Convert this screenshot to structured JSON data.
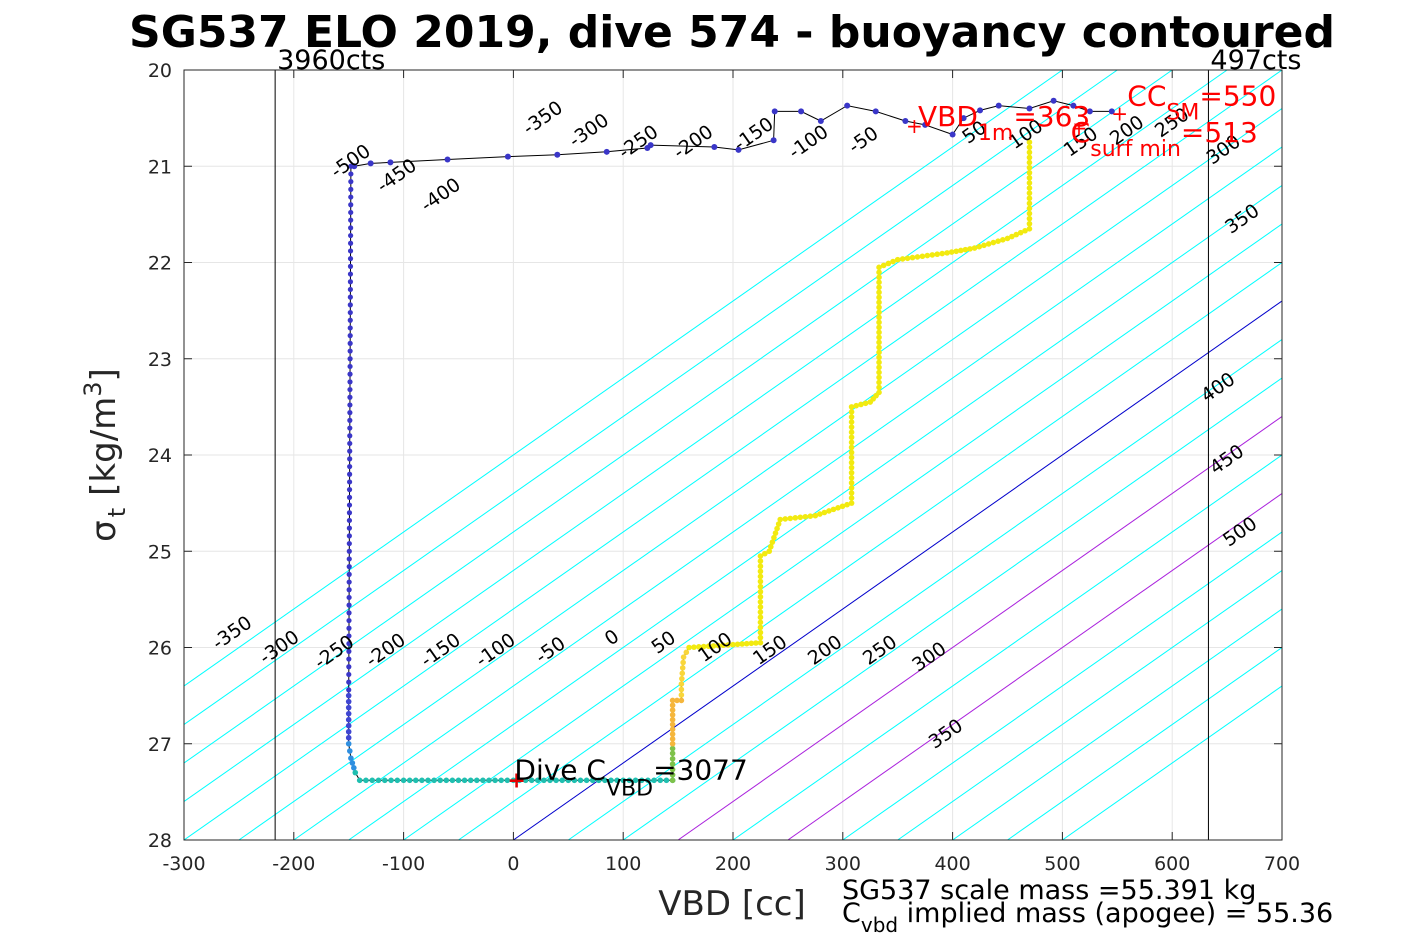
{
  "chart_data": {
    "type": "scatter",
    "title": "SG537 ELO 2019, dive 574 - buoyancy contoured",
    "xlabel": "VBD [cc]",
    "ylabel": "σ_t [kg/m^3]",
    "ylabel_parts": {
      "sigma": "σ",
      "sub": "t",
      "main": "[kg/m",
      "sup": "3",
      "close": "]"
    },
    "xlim": [
      -300,
      700
    ],
    "ylim": [
      20,
      28
    ],
    "y_reversed": true,
    "grid": true,
    "x_ticks": [
      -300,
      -200,
      -100,
      0,
      100,
      200,
      300,
      400,
      500,
      600,
      700
    ],
    "y_ticks": [
      20,
      21,
      22,
      23,
      24,
      25,
      26,
      27,
      28
    ],
    "colors": {
      "contour": "#00ffff",
      "zero_line": "#0000cc",
      "magenta_line": "#aa22dd",
      "dive": "#3a36c8",
      "climb": "#f2ea10",
      "bottom": "#1fbfb0",
      "annotation_red": "#ff0000",
      "track": "#000000"
    },
    "vertical_lines": [
      {
        "x": -217,
        "label": "3960cts"
      },
      {
        "x": 633,
        "label": "497cts"
      }
    ],
    "contours": {
      "slope_cc_per_sigma": -125,
      "levels": [
        -500,
        -450,
        -400,
        -350,
        -300,
        -250,
        -200,
        -150,
        -100,
        -50,
        0,
        50,
        100,
        150,
        200,
        250,
        300,
        350,
        400,
        450,
        500
      ],
      "highlight_zero": 0,
      "highlight_magenta": [
        150,
        250
      ],
      "labels": [
        {
          "level": "-500",
          "x": -145,
          "y": 21.0
        },
        {
          "level": "-450",
          "x": -103,
          "y": 21.15
        },
        {
          "level": "-400",
          "x": -63,
          "y": 21.35
        },
        {
          "level": "-350",
          "x": 30,
          "y": 20.55
        },
        {
          "level": "-300",
          "x": 72,
          "y": 20.68
        },
        {
          "level": "-250",
          "x": 117,
          "y": 20.8
        },
        {
          "level": "-200",
          "x": 167,
          "y": 20.8
        },
        {
          "level": "-150",
          "x": 222,
          "y": 20.72
        },
        {
          "level": "-100",
          "x": 272,
          "y": 20.8
        },
        {
          "level": "-50",
          "x": 322,
          "y": 20.78
        },
        {
          "level": "50",
          "x": 423,
          "y": 20.7
        },
        {
          "level": "100",
          "x": 470,
          "y": 20.72
        },
        {
          "level": "150",
          "x": 520,
          "y": 20.8
        },
        {
          "level": "200",
          "x": 562,
          "y": 20.68
        },
        {
          "level": "250",
          "x": 603,
          "y": 20.6
        },
        {
          "level": "300",
          "x": 650,
          "y": 20.88
        },
        {
          "level": "350",
          "x": 667,
          "y": 21.6
        },
        {
          "level": "400",
          "x": 645,
          "y": 23.35
        },
        {
          "level": "450",
          "x": 653,
          "y": 24.1
        },
        {
          "level": "500",
          "x": 665,
          "y": 24.85
        },
        {
          "level": "-350",
          "x": -253,
          "y": 25.9
        },
        {
          "level": "-300",
          "x": -210,
          "y": 26.05
        },
        {
          "level": "-250",
          "x": -160,
          "y": 26.1
        },
        {
          "level": "-200",
          "x": -113,
          "y": 26.08
        },
        {
          "level": "-150",
          "x": -63,
          "y": 26.08
        },
        {
          "level": "-100",
          "x": -13,
          "y": 26.08
        },
        {
          "level": "-50",
          "x": 37,
          "y": 26.08
        },
        {
          "level": "0",
          "x": 93,
          "y": 25.95
        },
        {
          "level": "50",
          "x": 140,
          "y": 26.0
        },
        {
          "level": "100",
          "x": 187,
          "y": 26.05
        },
        {
          "level": "150",
          "x": 237,
          "y": 26.08
        },
        {
          "level": "200",
          "x": 287,
          "y": 26.08
        },
        {
          "level": "250",
          "x": 337,
          "y": 26.08
        },
        {
          "level": "300",
          "x": 382,
          "y": 26.15
        },
        {
          "level": "350",
          "x": 397,
          "y": 26.95
        }
      ]
    },
    "series": [
      {
        "name": "dive",
        "points": [
          [
            -145,
            21.0
          ],
          [
            -130,
            20.97
          ],
          [
            -112,
            20.96
          ],
          [
            -60,
            20.93
          ],
          [
            -5,
            20.9
          ],
          [
            40,
            20.88
          ],
          [
            85,
            20.85
          ],
          [
            122,
            20.81
          ],
          [
            125,
            20.78
          ],
          [
            183,
            20.8
          ],
          [
            205,
            20.83
          ],
          [
            237,
            20.73
          ],
          [
            238,
            20.43
          ],
          [
            262,
            20.43
          ],
          [
            280,
            20.53
          ],
          [
            304,
            20.37
          ],
          [
            330,
            20.43
          ],
          [
            357,
            20.53
          ],
          [
            375,
            20.57
          ],
          [
            400,
            20.67
          ],
          [
            410,
            20.5
          ],
          [
            425,
            20.42
          ],
          [
            442,
            20.37
          ],
          [
            470,
            20.4
          ],
          [
            492,
            20.32
          ],
          [
            510,
            20.37
          ],
          [
            525,
            20.43
          ],
          [
            545,
            20.43
          ]
        ]
      },
      {
        "name": "descent",
        "x_top": -148,
        "x_bottom": -150,
        "y_start": 21.0,
        "y_end": 26.5
      },
      {
        "name": "bottom",
        "points": [
          [
            -150,
            26.5
          ],
          [
            -150,
            27.0
          ],
          [
            -148,
            27.15
          ],
          [
            -144,
            27.3
          ],
          [
            -140,
            27.38
          ],
          [
            -100,
            27.38
          ],
          [
            -50,
            27.38
          ],
          [
            0,
            27.38
          ],
          [
            50,
            27.38
          ],
          [
            100,
            27.38
          ],
          [
            145,
            27.38
          ]
        ]
      },
      {
        "name": "climb",
        "points": [
          [
            145,
            27.38
          ],
          [
            145,
            27.1
          ],
          [
            145,
            26.55
          ],
          [
            153,
            26.55
          ],
          [
            153,
            26.38
          ],
          [
            155,
            26.1
          ],
          [
            160,
            26.0
          ],
          [
            200,
            25.97
          ],
          [
            225,
            25.95
          ],
          [
            225,
            25.05
          ],
          [
            233,
            25.0
          ],
          [
            243,
            24.67
          ],
          [
            275,
            24.63
          ],
          [
            308,
            24.5
          ],
          [
            308,
            23.5
          ],
          [
            325,
            23.45
          ],
          [
            333,
            23.35
          ],
          [
            333,
            22.05
          ],
          [
            350,
            21.97
          ],
          [
            395,
            21.9
          ],
          [
            420,
            21.85
          ],
          [
            450,
            21.75
          ],
          [
            470,
            21.65
          ],
          [
            470,
            20.75
          ]
        ]
      }
    ],
    "annotations": [
      {
        "text": "Dive C",
        "sub": "VBD",
        "tail": "=3077",
        "x": 0,
        "y": 27.38
      },
      {
        "text": "VBD",
        "sub": "1m",
        "tail": "=363",
        "x": 363,
        "y": 20.58
      },
      {
        "text": "C",
        "sub": "surf min",
        "tail": "=513",
        "x": 513,
        "y": 20.6
      },
      {
        "text": "CC",
        "sub": "SM",
        "tail": "=550",
        "x": 550,
        "y": 20.45
      }
    ],
    "footer": {
      "scale_mass": "SG537 scale mass =55.391 kg",
      "implied_C": "C",
      "implied_sub": "vbd",
      "implied_tail": " implied mass (apogee) = 55.36"
    }
  }
}
